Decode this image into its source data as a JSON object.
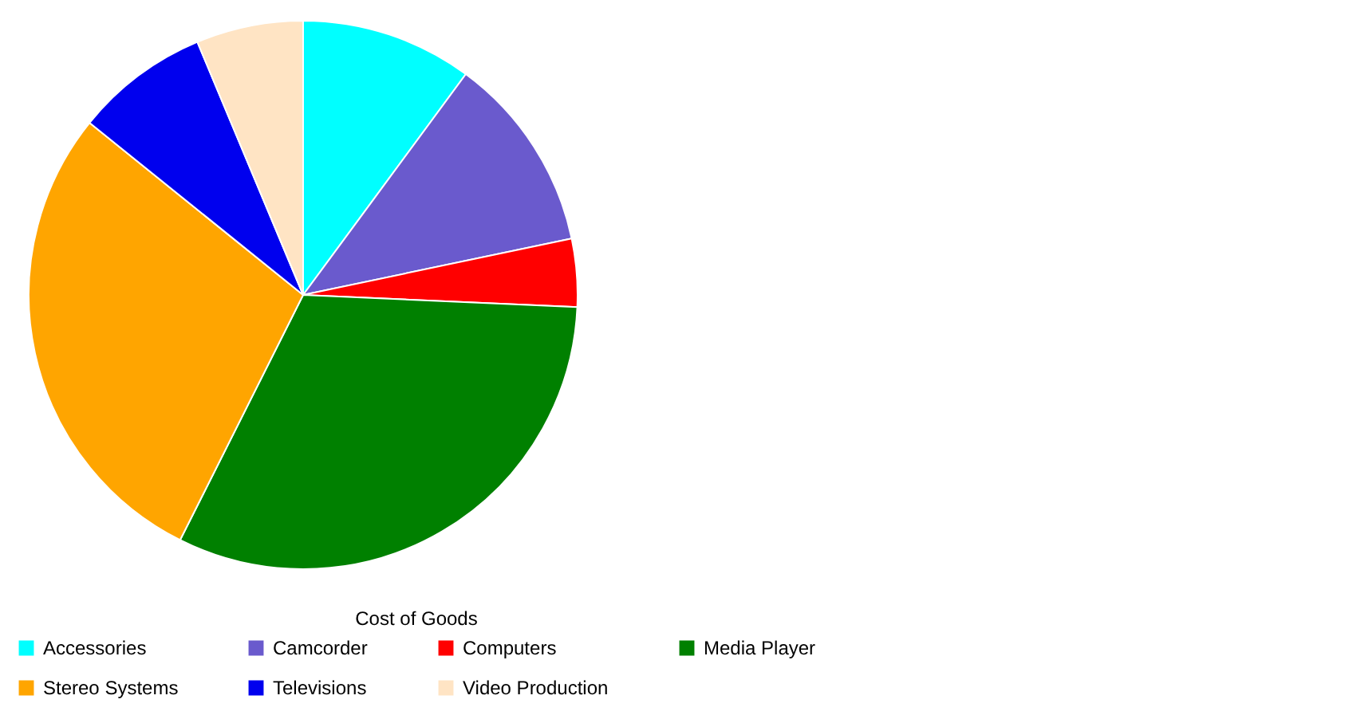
{
  "chart_data": {
    "type": "pie",
    "legend_title": "Cost of Goods",
    "legend": "bottom",
    "categories": [
      "Accessories",
      "Camcorder",
      "Computers",
      "Media Player",
      "Stereo Systems",
      "Televisions",
      "Video Production"
    ],
    "values": [
      10.1,
      11.6,
      4.0,
      31.7,
      28.4,
      7.9,
      6.3
    ],
    "colors": [
      "#00ffff",
      "#6a5acd",
      "#ff0000",
      "#008000",
      "#ffa500",
      "#0000ee",
      "#ffe4c4"
    ]
  }
}
